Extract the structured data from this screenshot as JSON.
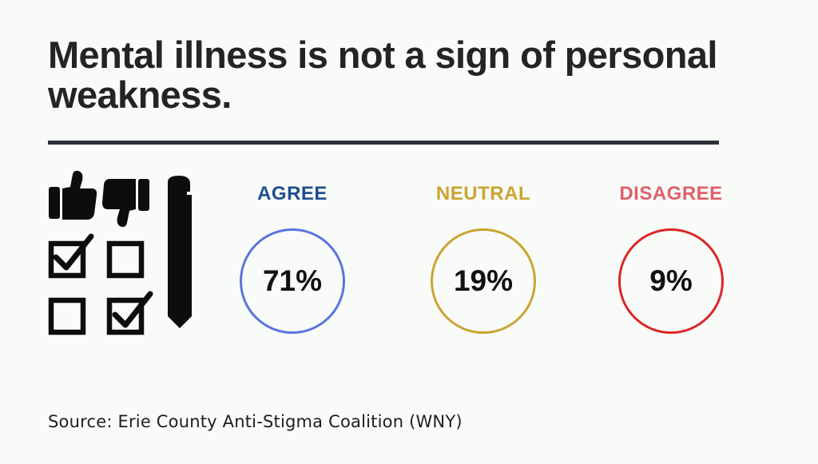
{
  "title": "Mental illness is not a sign of personal weakness.",
  "source": "Source: Erie County Anti-Stigma Coalition (WNY)",
  "icon": "survey-vote-icon",
  "chart_data": {
    "type": "table",
    "categories": [
      "AGREE",
      "NEUTRAL",
      "DISAGREE"
    ],
    "values": [
      71,
      19,
      9
    ],
    "value_labels": [
      "71%",
      "19%",
      "9%"
    ],
    "colors": {
      "agree_label": "#1f4e8f",
      "agree_ring": "#5b74e0",
      "neutral": "#cba431",
      "disagree_label": "#e0606a",
      "disagree_ring": "#dc2626"
    }
  }
}
